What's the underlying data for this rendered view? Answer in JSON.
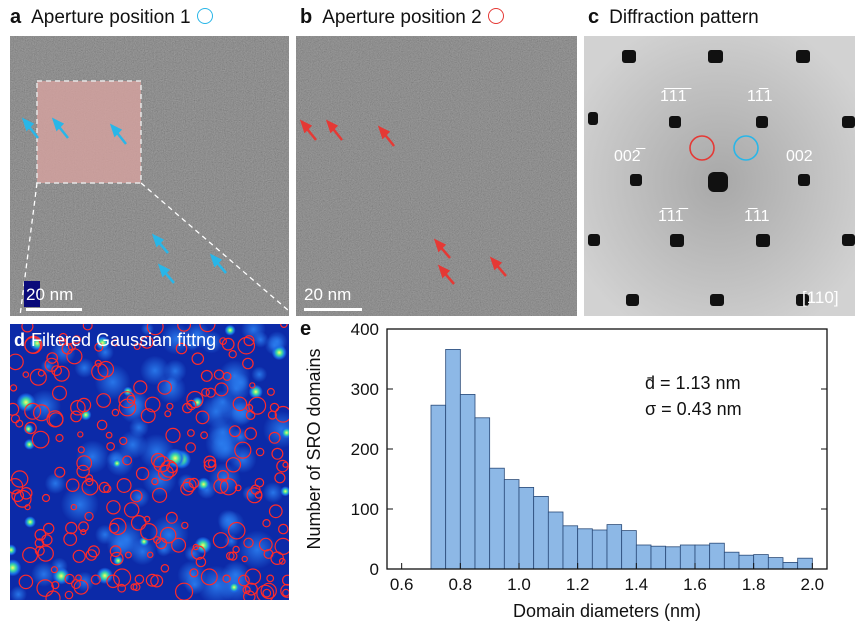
{
  "panel_a": {
    "letter": "a",
    "title": "Aperture position 1",
    "marker_color": "#29b6e8",
    "scale_label": "20 nm"
  },
  "panel_b": {
    "letter": "b",
    "title": "Aperture position 2",
    "marker_color": "#e53935",
    "scale_label": "20 nm"
  },
  "panel_c": {
    "letter": "c",
    "title": "Diffraction pattern",
    "spots": {
      "top_left": "1̅1̅1̅",
      "top_right": "11̅1",
      "left": "002̅",
      "right": "002",
      "bottom_left": "1̅11̅",
      "bottom_right": "1̅11"
    },
    "zone_axis": "[110]"
  },
  "panel_d": {
    "letter": "d",
    "title": "Filtered Gaussian fittng"
  },
  "panel_e": {
    "letter": "e",
    "stats_line1": "d̄ = 1.13 nm",
    "stats_line2": "σ = 0.43 nm",
    "bar_color": "#8db8e6",
    "chart_data": {
      "type": "bar",
      "xlabel": "Domain diameters (nm)",
      "ylabel": "Number of SRO domains",
      "xlim": [
        0.55,
        2.05
      ],
      "ylim": [
        0,
        400
      ],
      "xticks": [
        "0.6",
        "0.8",
        "1.0",
        "1.2",
        "1.4",
        "1.6",
        "1.8",
        "2.0"
      ],
      "yticks": [
        "0",
        "100",
        "200",
        "300",
        "400"
      ],
      "bin_width": 0.05,
      "bin_starts": [
        0.7,
        0.75,
        0.8,
        0.85,
        0.9,
        0.95,
        1.0,
        1.05,
        1.1,
        1.15,
        1.2,
        1.25,
        1.3,
        1.35,
        1.4,
        1.45,
        1.5,
        1.55,
        1.6,
        1.65,
        1.7,
        1.75,
        1.8,
        1.85,
        1.9,
        1.95
      ],
      "values": [
        273,
        366,
        291,
        252,
        168,
        149,
        136,
        121,
        95,
        72,
        67,
        65,
        74,
        64,
        40,
        38,
        37,
        40,
        40,
        43,
        28,
        23,
        24,
        19,
        11,
        18
      ]
    }
  }
}
